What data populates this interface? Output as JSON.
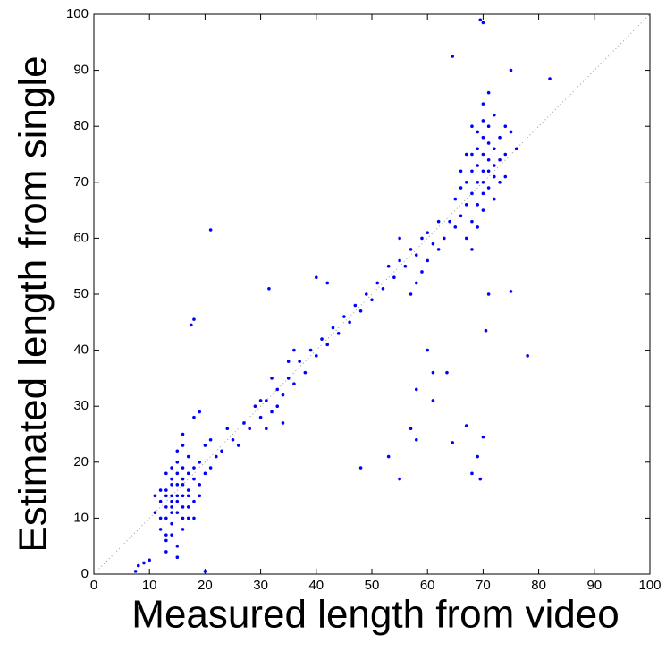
{
  "chart_data": {
    "type": "scatter",
    "x_label": "Measured length from video",
    "y_label": "Estimated length from single",
    "color": "#0000ff",
    "xlim": [
      0,
      100
    ],
    "ylim": [
      0,
      100
    ],
    "xticks": [
      0,
      10,
      20,
      30,
      40,
      50,
      60,
      70,
      80,
      90,
      100
    ],
    "yticks": [
      0,
      10,
      20,
      30,
      40,
      50,
      60,
      70,
      80,
      90,
      100
    ],
    "x": [
      15,
      14,
      16,
      13,
      17,
      15,
      14,
      16,
      12,
      18,
      15,
      13,
      16,
      14,
      17,
      15,
      16,
      14,
      13,
      17,
      12,
      18,
      15,
      16,
      14,
      19,
      13,
      15,
      17,
      11,
      16,
      18,
      14,
      20,
      15,
      12,
      17,
      19,
      16,
      13,
      14,
      21,
      18,
      15,
      16,
      14,
      13,
      17,
      12,
      19,
      22,
      11,
      14,
      16,
      18,
      20,
      13,
      15,
      19,
      21,
      23,
      25,
      24,
      26,
      27,
      28,
      29,
      30,
      31,
      32,
      33,
      34,
      35,
      33,
      30,
      36,
      37,
      35,
      38,
      39,
      32,
      34,
      31,
      36,
      40,
      41,
      42,
      43,
      44,
      45,
      46,
      47,
      48,
      49,
      50,
      51,
      52,
      53,
      54,
      55,
      56,
      57,
      58,
      55,
      59,
      60,
      61,
      62,
      60,
      58,
      57,
      42,
      40,
      59,
      62,
      70,
      69,
      71,
      68,
      72,
      70,
      67,
      73,
      69,
      71,
      68,
      72,
      70,
      66,
      74,
      69,
      71,
      67,
      73,
      70,
      68,
      72,
      65,
      70,
      69,
      71,
      66,
      74,
      68,
      72,
      67,
      70,
      73,
      64,
      69,
      71,
      75,
      65,
      68,
      72,
      76,
      63,
      70,
      69,
      71,
      68,
      66,
      74,
      67,
      70,
      21,
      18,
      17.5,
      31.5,
      70,
      69.5,
      64.5,
      75,
      82,
      78,
      48,
      55,
      60,
      61,
      63.5,
      58,
      61,
      57,
      58,
      64.5,
      67,
      68,
      69,
      69.5,
      70,
      70.5,
      71,
      75,
      9,
      8,
      10,
      7.5,
      20,
      13,
      53
    ],
    "values": [
      14,
      12,
      16,
      10,
      15,
      18,
      16,
      12,
      13,
      17,
      11,
      15,
      19,
      9,
      12,
      13,
      14,
      14,
      12,
      18,
      8,
      13,
      20,
      10,
      17,
      16,
      6,
      5,
      21,
      11,
      8,
      19,
      11,
      18,
      22,
      15,
      10,
      20,
      23,
      18,
      7,
      19,
      10,
      16,
      17,
      13,
      14,
      14,
      10,
      14,
      21,
      14,
      19,
      25,
      28,
      23,
      4,
      3,
      29,
      24,
      22,
      24,
      26,
      23,
      27,
      26,
      30,
      28,
      31,
      29,
      33,
      32,
      35,
      30,
      31,
      34,
      38,
      38,
      36,
      40,
      35,
      27,
      26,
      40,
      39,
      42,
      41,
      44,
      43,
      46,
      45,
      48,
      47,
      50,
      49,
      52,
      51,
      55,
      53,
      56,
      55,
      58,
      57,
      60,
      60,
      61,
      59,
      63,
      56,
      52,
      50,
      52,
      53,
      54,
      58,
      72,
      70,
      74,
      68,
      76,
      75,
      66,
      78,
      73,
      69,
      72,
      71,
      68,
      64,
      80,
      76,
      80,
      70,
      74,
      65,
      63,
      82,
      62,
      78,
      66,
      72,
      69,
      75,
      75,
      67,
      60,
      84,
      70,
      63,
      62,
      77,
      79,
      67,
      80,
      73,
      76,
      60,
      70,
      79,
      86,
      58,
      72,
      71,
      75,
      81,
      61.5,
      45.5,
      44.5,
      51,
      98.5,
      99,
      92.5,
      90,
      88.5,
      39,
      19,
      17,
      40,
      36,
      36,
      33,
      31,
      26,
      24,
      23.5,
      26.5,
      18,
      21,
      17,
      24.5,
      43.5,
      50,
      50.5,
      2,
      1.5,
      2.5,
      0.5,
      0.5,
      7,
      21
    ]
  }
}
